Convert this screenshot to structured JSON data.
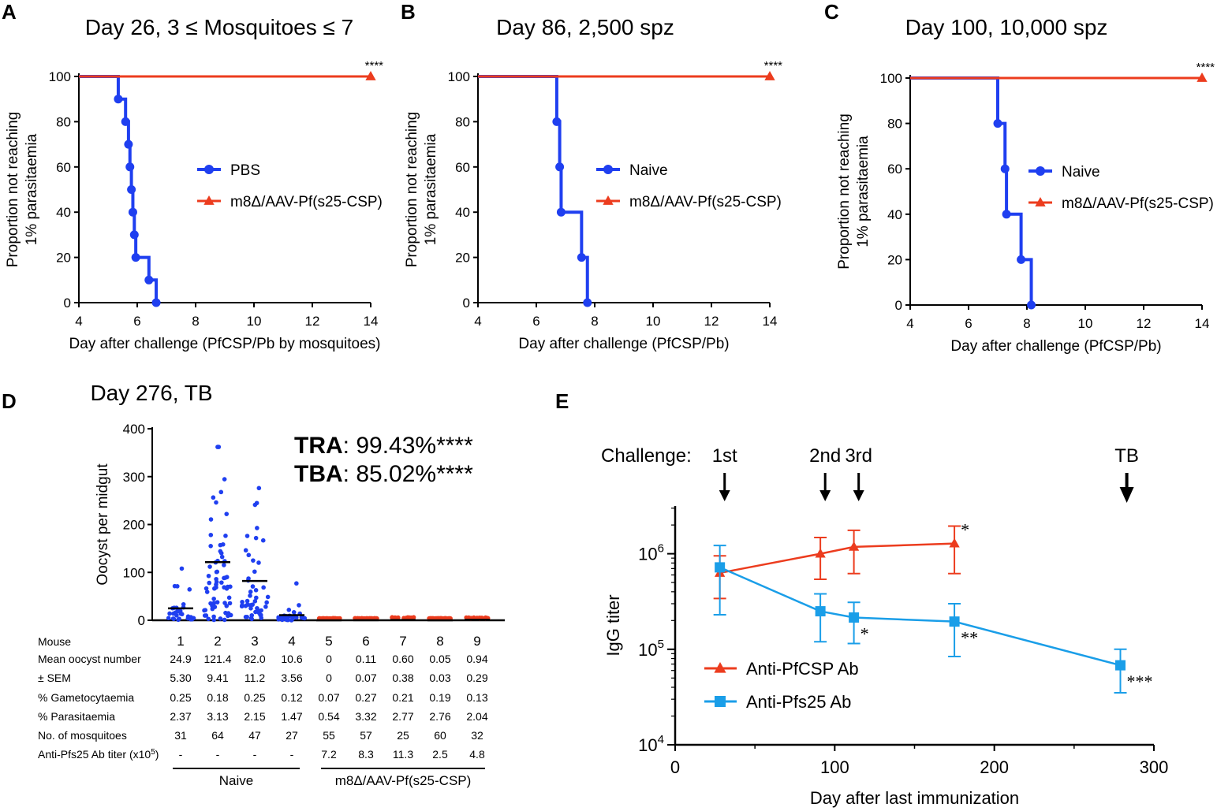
{
  "figure": {
    "colors": {
      "blue": "#1f3ff0",
      "red": "#ec3c1e",
      "dot_blue": "#1f3ff0",
      "dot_red": "#ec3c1e",
      "e_red": "#ec3c1e",
      "e_blue": "#1a9ee8"
    }
  },
  "chart_data": [
    {
      "panel": "A",
      "type": "line",
      "subtype": "kaplan-meier",
      "title": "Day 26, 3 ≤ Mosquitoes ≤ 7",
      "xlabel": "Day after challenge (PfCSP/Pb by mosquitoes)",
      "ylabel": [
        "Proportion not reaching",
        "1% parasitaemia"
      ],
      "xlim": [
        4,
        14
      ],
      "ylim": [
        0,
        100
      ],
      "xticks": [
        "4",
        "6",
        "8",
        "10",
        "12",
        "14"
      ],
      "yticks": [
        "0",
        "20",
        "40",
        "60",
        "80",
        "100"
      ],
      "significance": "****",
      "legend": "right",
      "series": [
        {
          "name": "PBS",
          "color": "#1f3ff0",
          "marker": "circle",
          "steps": [
            [
              4,
              100
            ],
            [
              5.35,
              90
            ],
            [
              5.6,
              80
            ],
            [
              5.7,
              70
            ],
            [
              5.75,
              60
            ],
            [
              5.8,
              50
            ],
            [
              5.85,
              40
            ],
            [
              5.9,
              30
            ],
            [
              5.95,
              20
            ],
            [
              6.4,
              10
            ],
            [
              6.65,
              0
            ]
          ]
        },
        {
          "name": "m8Δ/AAV-Pf(s25-CSP)",
          "color": "#ec3c1e",
          "marker": "triangle",
          "steps": [
            [
              4,
              100
            ]
          ],
          "end_point": [
            14,
            100
          ]
        }
      ]
    },
    {
      "panel": "B",
      "type": "line",
      "subtype": "kaplan-meier",
      "title": "Day 86, 2,500 spz",
      "xlabel": "Day after challenge (PfCSP/Pb)",
      "ylabel": [
        "Proportion not reaching",
        "1% parasitaemia"
      ],
      "xlim": [
        4,
        14
      ],
      "ylim": [
        0,
        100
      ],
      "xticks": [
        "4",
        "6",
        "8",
        "10",
        "12",
        "14"
      ],
      "yticks": [
        "0",
        "20",
        "40",
        "60",
        "80",
        "100"
      ],
      "significance": "****",
      "legend": "right",
      "series": [
        {
          "name": "Naive",
          "color": "#1f3ff0",
          "marker": "circle",
          "steps": [
            [
              4,
              100
            ],
            [
              6.7,
              80
            ],
            [
              6.8,
              60
            ],
            [
              6.85,
              40
            ],
            [
              7.55,
              20
            ],
            [
              7.75,
              0
            ]
          ]
        },
        {
          "name": "m8Δ/AAV-Pf(s25-CSP)",
          "color": "#ec3c1e",
          "marker": "triangle",
          "steps": [
            [
              4,
              100
            ]
          ],
          "end_point": [
            14,
            100
          ]
        }
      ]
    },
    {
      "panel": "C",
      "type": "line",
      "subtype": "kaplan-meier",
      "title": "Day 100, 10,000 spz",
      "xlabel": "Day after challenge (PfCSP/Pb)",
      "ylabel": [
        "Proportion not reaching",
        "1% parasitaemia"
      ],
      "xlim": [
        4,
        14
      ],
      "ylim": [
        0,
        100
      ],
      "xticks": [
        "4",
        "6",
        "8",
        "10",
        "12",
        "14"
      ],
      "yticks": [
        "0",
        "20",
        "40",
        "60",
        "80",
        "100"
      ],
      "significance": "****",
      "legend": "right",
      "series": [
        {
          "name": "Naive",
          "color": "#1f3ff0",
          "marker": "circle",
          "steps": [
            [
              4,
              100
            ],
            [
              7.0,
              80
            ],
            [
              7.25,
              60
            ],
            [
              7.3,
              40
            ],
            [
              7.8,
              20
            ],
            [
              8.15,
              0
            ]
          ]
        },
        {
          "name": "m8Δ/AAV-Pf(s25-CSP)",
          "color": "#ec3c1e",
          "marker": "triangle",
          "steps": [
            [
              4,
              100
            ]
          ],
          "end_point": [
            14,
            100
          ]
        }
      ]
    },
    {
      "panel": "D",
      "type": "scatter",
      "subtype": "dot-plot",
      "title": "Day 276, TB",
      "ylabel": "Oocyst per midgut",
      "ylim": [
        0,
        400
      ],
      "yticks": [
        "0",
        "100",
        "200",
        "300",
        "400"
      ],
      "stats": [
        {
          "label": "TRA",
          "value": ": 99.43%****"
        },
        {
          "label": "TBA",
          "value": ": 85.02%****"
        }
      ],
      "mice": [
        "1",
        "2",
        "3",
        "4",
        "5",
        "6",
        "7",
        "8",
        "9"
      ],
      "means": [
        24.9,
        121.4,
        82.0,
        10.6,
        0,
        0.11,
        0.6,
        0.05,
        0.94
      ],
      "point_counts": [
        31,
        64,
        47,
        27,
        55,
        57,
        25,
        60,
        32
      ],
      "max_values": [
        108,
        362,
        276,
        77,
        2,
        2,
        6,
        2,
        5
      ],
      "table_rows": [
        {
          "label": "Mouse",
          "values": [
            "1",
            "2",
            "3",
            "4",
            "5",
            "6",
            "7",
            "8",
            "9"
          ]
        },
        {
          "label": "Mean oocyst number",
          "values": [
            "24.9",
            "121.4",
            "82.0",
            "10.6",
            "0",
            "0.11",
            "0.60",
            "0.05",
            "0.94"
          ]
        },
        {
          "label": "± SEM",
          "values": [
            "5.30",
            "9.41",
            "11.2",
            "3.56",
            "0",
            "0.07",
            "0.38",
            "0.03",
            "0.29"
          ]
        },
        {
          "label": "% Gametocytaemia",
          "values": [
            "0.25",
            "0.18",
            "0.25",
            "0.12",
            "0.07",
            "0.27",
            "0.21",
            "0.19",
            "0.13"
          ]
        },
        {
          "label": "% Parasitaemia",
          "values": [
            "2.37",
            "3.13",
            "2.15",
            "1.47",
            "0.54",
            "3.32",
            "2.77",
            "2.76",
            "2.04"
          ]
        },
        {
          "label": "No. of mosquitoes",
          "values": [
            "31",
            "64",
            "47",
            "27",
            "55",
            "57",
            "25",
            "60",
            "32"
          ]
        },
        {
          "label": "Anti-Pfs25 Ab titer (x10",
          "sup": "5",
          "label_end": ")",
          "values": [
            "-",
            "-",
            "-",
            "-",
            "7.2",
            "8.3",
            "11.3",
            "2.5",
            "4.8"
          ]
        }
      ],
      "groups": [
        {
          "name": "Naive",
          "mice": [
            1,
            4
          ]
        },
        {
          "name": "m8Δ/AAV-Pf(s25-CSP)",
          "mice": [
            5,
            9
          ]
        }
      ]
    },
    {
      "panel": "E",
      "type": "line",
      "subtype": "log-y with error bars",
      "xlabel": "Day after last immunization",
      "ylabel": "IgG  titer",
      "xlim": [
        0,
        300
      ],
      "ylim_log10": [
        4,
        6.5
      ],
      "xticks": [
        "0",
        "100",
        "200",
        "300"
      ],
      "yticks": [
        {
          "base": "10",
          "exp": "4"
        },
        {
          "base": "10",
          "exp": "5"
        },
        {
          "base": "10",
          "exp": "6"
        }
      ],
      "challenge_label": "Challenge:",
      "challenges": [
        {
          "label": "1st",
          "day": 31
        },
        {
          "label": "2nd",
          "day": 94
        },
        {
          "label": "3rd",
          "day": 115
        },
        {
          "label": "TB",
          "day": 283
        }
      ],
      "legend": "bottom-left",
      "series": [
        {
          "name": "Anti-PfCSP Ab",
          "color": "#ec3c1e",
          "marker": "triangle",
          "x": [
            28,
            91,
            112,
            175
          ],
          "y": [
            630000,
            1000000,
            1180000,
            1280000
          ],
          "err_low": [
            340000,
            540000,
            620000,
            620000
          ],
          "err_high": [
            950000,
            1480000,
            1760000,
            1950000
          ],
          "significance": [
            "",
            "",
            "",
            "*"
          ]
        },
        {
          "name": "Anti-Pfs25 Ab",
          "color": "#1a9ee8",
          "marker": "square",
          "x": [
            28,
            91,
            112,
            175,
            279
          ],
          "y": [
            720000,
            250000,
            215000,
            195000,
            68000
          ],
          "err_low": [
            230000,
            120000,
            115000,
            84000,
            35000
          ],
          "err_high": [
            1220000,
            380000,
            310000,
            300000,
            100000
          ],
          "significance": [
            "",
            "",
            "*",
            "**",
            "***"
          ]
        }
      ]
    }
  ]
}
